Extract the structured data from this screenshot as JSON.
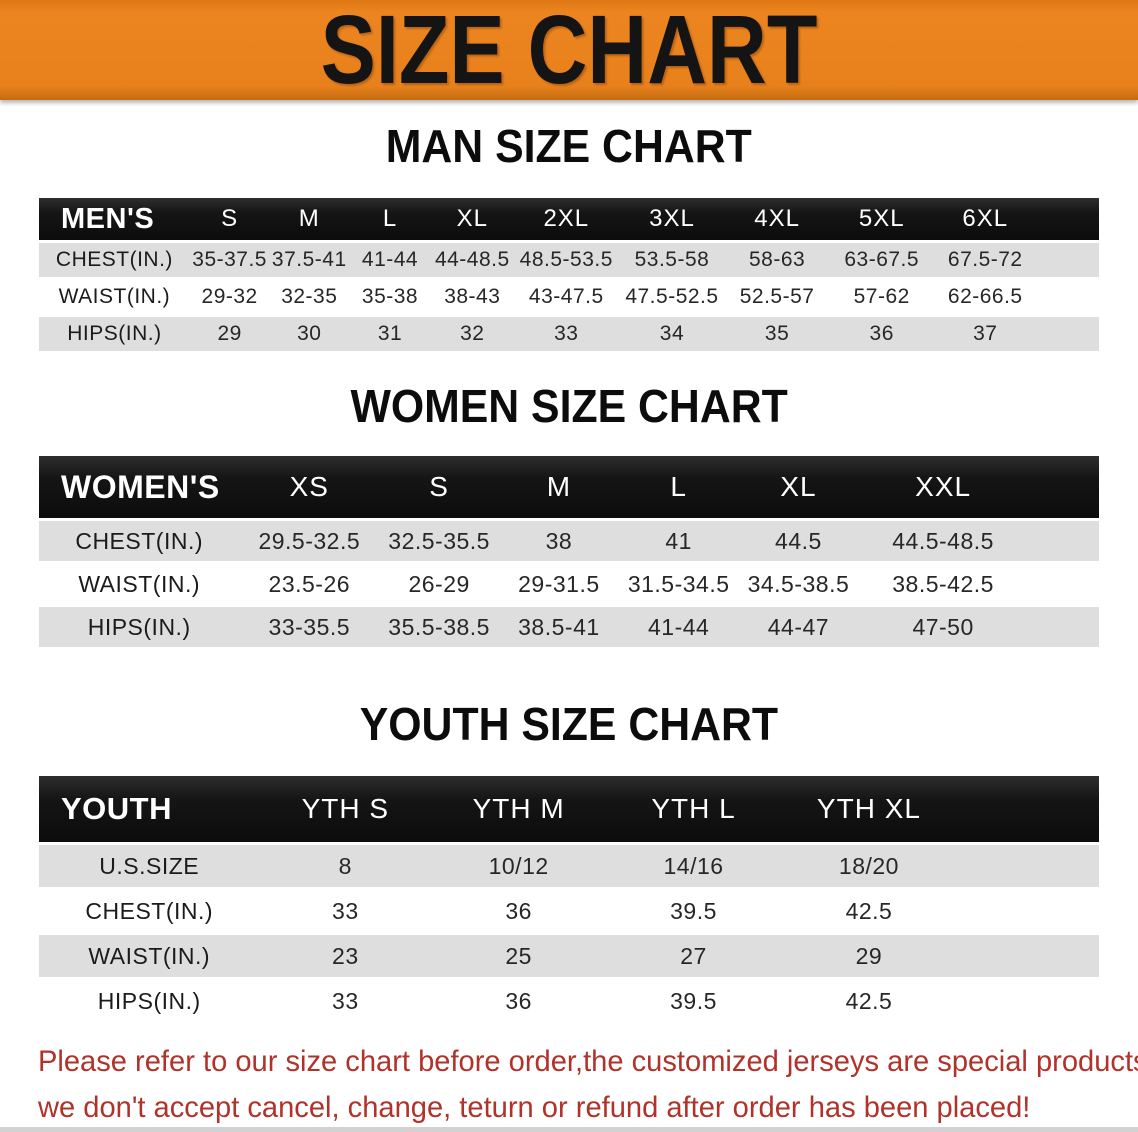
{
  "banner": {
    "title": "SIZE CHART",
    "bg_color": "#E8811C",
    "text_color": "#141414"
  },
  "colors": {
    "table_header_bar": "#111111",
    "row_alternate": "#DEDEDE",
    "disclaimer_text": "#B2322A"
  },
  "sections": [
    {
      "heading": "MAN SIZE CHART",
      "table": {
        "header_label": "MEN'S",
        "sizes": [
          "S",
          "M",
          "L",
          "XL",
          "2XL",
          "3XL",
          "4XL",
          "5XL",
          "6XL"
        ],
        "rows": [
          {
            "label": "CHEST(IN.)",
            "values": [
              "35-37.5",
              "37.5-41",
              "41-44",
              "44-48.5",
              "48.5-53.5",
              "53.5-58",
              "58-63",
              "63-67.5",
              "67.5-72"
            ]
          },
          {
            "label": "WAIST(IN.)",
            "values": [
              "29-32",
              "32-35",
              "35-38",
              "38-43",
              "43-47.5",
              "47.5-52.5",
              "52.5-57",
              "57-62",
              "62-66.5"
            ]
          },
          {
            "label": "HIPS(IN.)",
            "values": [
              "29",
              "30",
              "31",
              "32",
              "33",
              "34",
              "35",
              "36",
              "37"
            ]
          }
        ]
      }
    },
    {
      "heading": "WOMEN SIZE CHART",
      "table": {
        "header_label": "WOMEN'S",
        "sizes": [
          "XS",
          "S",
          "M",
          "L",
          "XL",
          "XXL"
        ],
        "rows": [
          {
            "label": "CHEST(IN.)",
            "values": [
              "29.5-32.5",
              "32.5-35.5",
              "38",
              "41",
              "44.5",
              "44.5-48.5"
            ]
          },
          {
            "label": "WAIST(IN.)",
            "values": [
              "23.5-26",
              "26-29",
              "29-31.5",
              "31.5-34.5",
              "34.5-38.5",
              "38.5-42.5"
            ]
          },
          {
            "label": "HIPS(IN.)",
            "values": [
              "33-35.5",
              "35.5-38.5",
              "38.5-41",
              "41-44",
              "44-47",
              "47-50"
            ]
          }
        ]
      }
    },
    {
      "heading": "YOUTH SIZE CHART",
      "table": {
        "header_label": "YOUTH",
        "sizes": [
          "YTH S",
          "YTH M",
          "YTH L",
          "YTH XL"
        ],
        "rows": [
          {
            "label": "U.S.SIZE",
            "values": [
              "8",
              "10/12",
              "14/16",
              "18/20"
            ]
          },
          {
            "label": "CHEST(IN.)",
            "values": [
              "33",
              "36",
              "39.5",
              "42.5"
            ]
          },
          {
            "label": "WAIST(IN.)",
            "values": [
              "23",
              "25",
              "27",
              "29"
            ]
          },
          {
            "label": "HIPS(IN.)",
            "values": [
              "33",
              "36",
              "39.5",
              "42.5"
            ]
          }
        ]
      }
    }
  ],
  "disclaimer": {
    "line1": "Please refer to our size chart before order,the customized jerseys are special products,",
    "line2": "we don't accept cancel, change, teturn or refund after order has been placed!"
  }
}
